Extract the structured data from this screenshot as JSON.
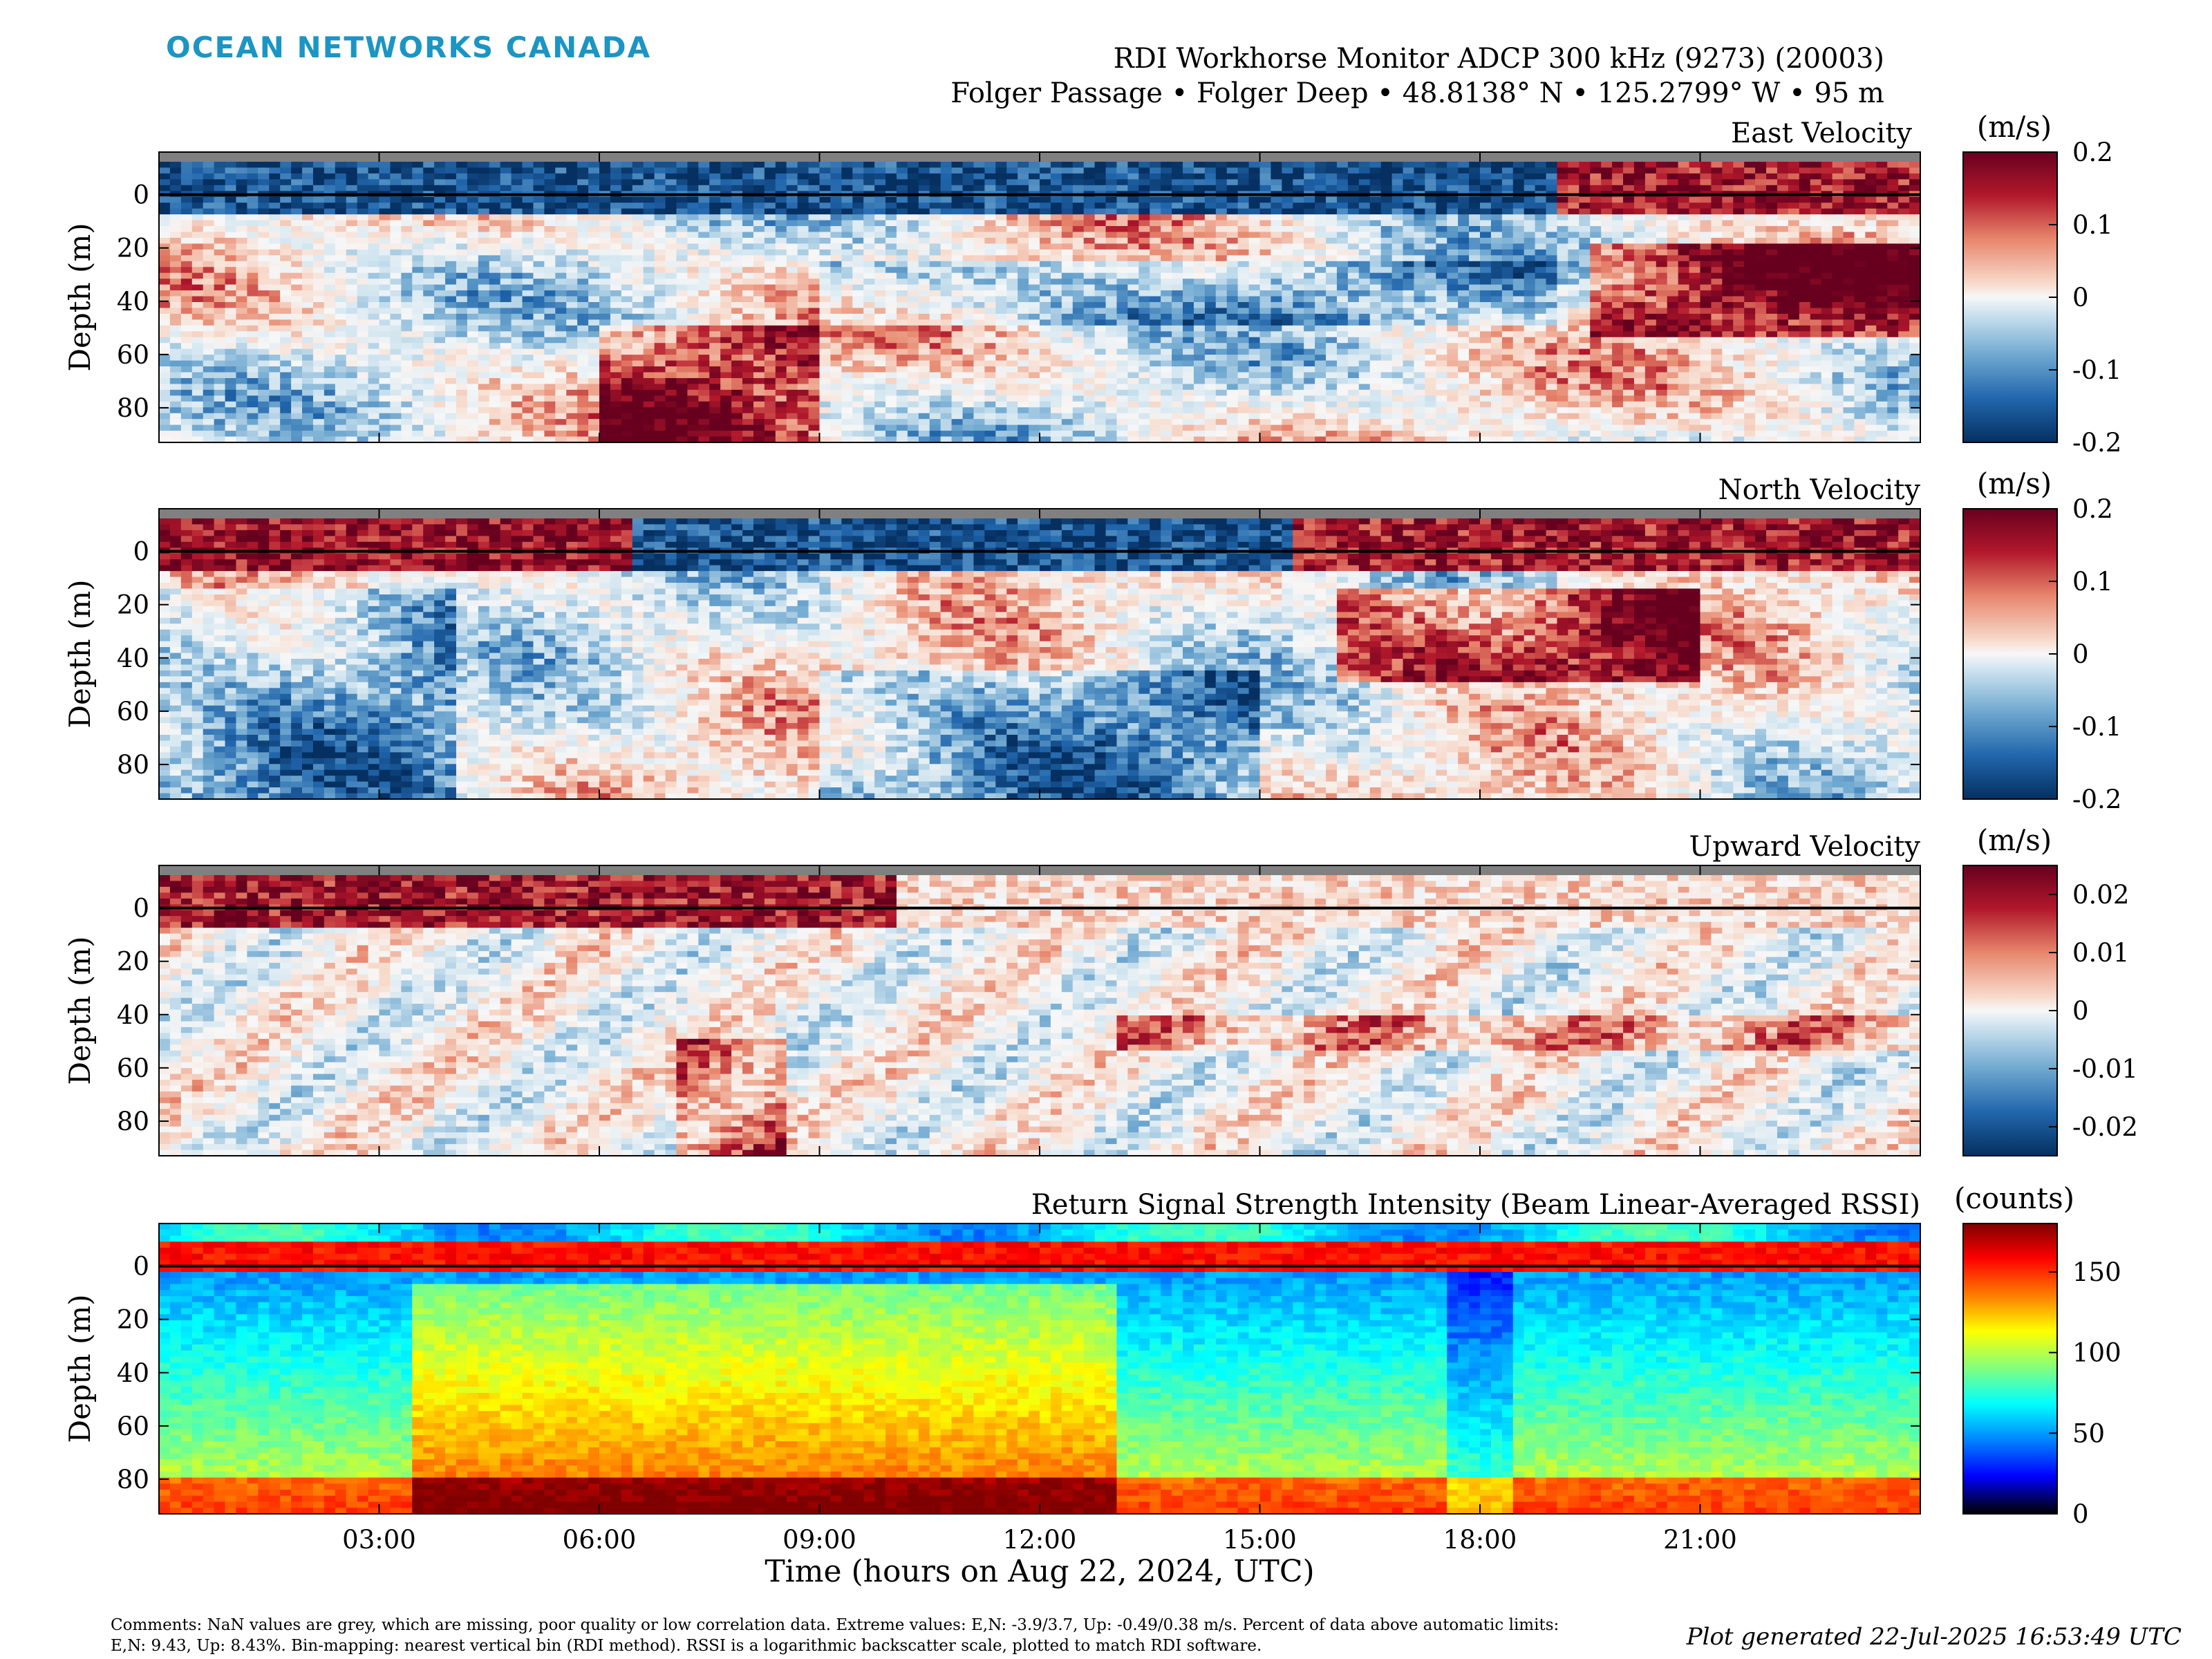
{
  "brand": "OCEAN NETWORKS CANADA",
  "header": {
    "title1": "RDI Workhorse Monitor ADCP 300 kHz (9273) (20003)",
    "title2": "Folger Passage • Folger Deep • 48.8138° N • 125.2799° W • 95 m"
  },
  "footer": {
    "comments": "Comments: NaN values are grey, which are missing, poor quality or low correlation data. Extreme values: E,N: -3.9/3.7, Up: -0.49/0.38 m/s. Percent of data above automatic limits: E,N: 9.43, Up: 8.43%. Bin-mapping: nearest vertical bin (RDI method). RSSI is a logarithmic backscatter scale, plotted to match RDI software.",
    "generated": "Plot generated 22-Jul-2025 16:53:49 UTC"
  },
  "colors": {
    "brand": "#1b95c4",
    "nan_grey": "#808080"
  },
  "chart_data": [
    {
      "type": "heatmap",
      "title": "East Velocity",
      "colormap": "diverging red-blue",
      "ylabel": "Depth (m)",
      "yticks": [
        0,
        20,
        40,
        60,
        80
      ],
      "ylim": [
        -16,
        93
      ],
      "xlabel": "",
      "xticks": [
        "03:00",
        "06:00",
        "09:00",
        "12:00",
        "15:00",
        "18:00",
        "21:00"
      ],
      "xlim_hours": [
        0,
        24
      ],
      "colorbar": {
        "unit": "(m/s)",
        "ticks": [
          "0.2",
          "0.1",
          "0",
          "-0.1",
          "-0.2"
        ],
        "range": [
          -0.2,
          0.2
        ]
      }
    },
    {
      "type": "heatmap",
      "title": "North Velocity",
      "colormap": "diverging red-blue",
      "ylabel": "Depth (m)",
      "yticks": [
        0,
        20,
        40,
        60,
        80
      ],
      "ylim": [
        -16,
        93
      ],
      "xlabel": "",
      "xticks": [
        "03:00",
        "06:00",
        "09:00",
        "12:00",
        "15:00",
        "18:00",
        "21:00"
      ],
      "xlim_hours": [
        0,
        24
      ],
      "colorbar": {
        "unit": "(m/s)",
        "ticks": [
          "0.2",
          "0.1",
          "0",
          "-0.1",
          "-0.2"
        ],
        "range": [
          -0.2,
          0.2
        ]
      }
    },
    {
      "type": "heatmap",
      "title": "Upward Velocity",
      "colormap": "diverging red-blue",
      "ylabel": "Depth (m)",
      "yticks": [
        0,
        20,
        40,
        60,
        80
      ],
      "ylim": [
        -16,
        93
      ],
      "xlabel": "",
      "xticks": [
        "03:00",
        "06:00",
        "09:00",
        "12:00",
        "15:00",
        "18:00",
        "21:00"
      ],
      "xlim_hours": [
        0,
        24
      ],
      "colorbar": {
        "unit": "(m/s)",
        "ticks": [
          "0.02",
          "0.01",
          "0",
          "-0.01",
          "-0.02"
        ],
        "range": [
          -0.025,
          0.025
        ]
      }
    },
    {
      "type": "heatmap",
      "title": "Return Signal Strength Intensity (Beam Linear-Averaged RSSI)",
      "colormap": "jet",
      "ylabel": "Depth (m)",
      "yticks": [
        0,
        20,
        40,
        60,
        80
      ],
      "ylim": [
        -16,
        93
      ],
      "xlabel": "Time (hours on Aug 22, 2024, UTC)",
      "xticks": [
        "03:00",
        "06:00",
        "09:00",
        "12:00",
        "15:00",
        "18:00",
        "21:00"
      ],
      "xlim_hours": [
        0,
        24
      ],
      "colorbar": {
        "unit": "(counts)",
        "ticks": [
          "150",
          "100",
          "50",
          "0"
        ],
        "range": [
          0,
          180
        ]
      }
    }
  ]
}
